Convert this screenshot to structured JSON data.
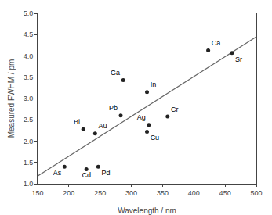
{
  "chart_data": {
    "type": "scatter",
    "xlabel": "Wavelength / nm",
    "ylabel": "Measured FWHM / pm",
    "series": [
      {
        "type": "scatter",
        "marker": "circle",
        "color": "#222222",
        "x": [
          193,
          223,
          242,
          228,
          247,
          287,
          283,
          325,
          328,
          325,
          358,
          423,
          461
        ],
        "values": [
          1.4,
          2.28,
          2.18,
          1.34,
          1.4,
          3.43,
          2.6,
          3.15,
          2.38,
          2.22,
          2.58,
          4.13,
          4.07
        ],
        "labels": [
          "As",
          "Bi",
          "Au",
          "Cd",
          "Pd",
          "Ga",
          "Pb",
          "In",
          "Ag",
          "Cu",
          "Cr",
          "Ca",
          "Sr"
        ]
      },
      {
        "type": "line",
        "line_style": "solid",
        "color": "#666666",
        "x": [
          150,
          500
        ],
        "values": [
          1.18,
          4.45
        ]
      }
    ],
    "xlim": [
      150,
      500
    ],
    "ylim": [
      1.0,
      5.0
    ],
    "xticks": [
      150,
      200,
      250,
      300,
      350,
      400,
      450,
      500
    ],
    "yticks": [
      {
        "value": 1.0,
        "label": "1.0"
      },
      1.5,
      {
        "value": 2.0,
        "label": "2.0"
      },
      2.5,
      {
        "value": 3.0,
        "label": "3.0"
      },
      3.5,
      {
        "value": 4.0,
        "label": "4.0"
      },
      4.5,
      {
        "value": 5.0,
        "label": "5.0"
      }
    ],
    "grid": false
  }
}
